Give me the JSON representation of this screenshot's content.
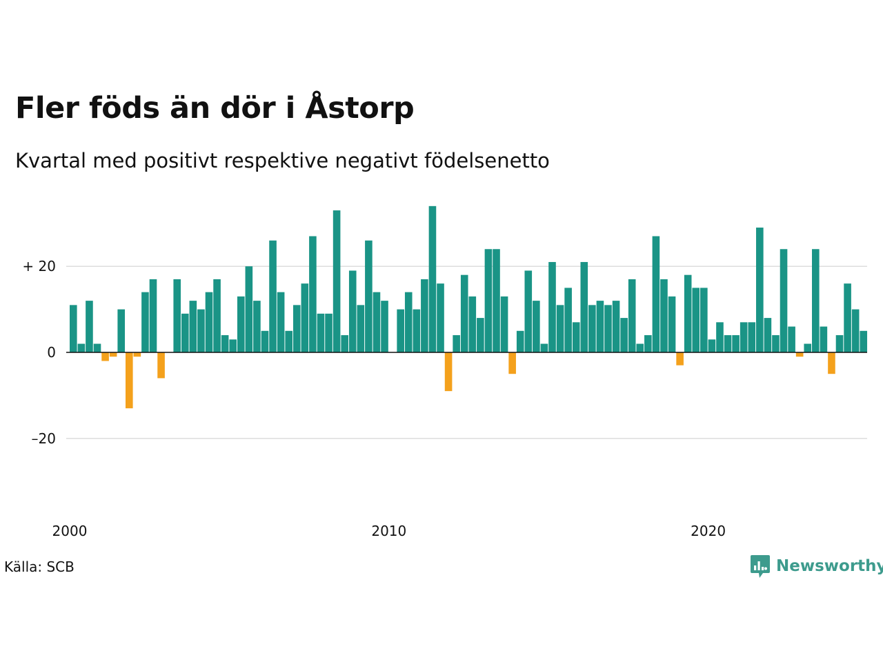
{
  "header": {
    "title": "Fler föds än dör i Åstorp",
    "subtitle": "Kvartal med positivt respektive negativt födelsenetto"
  },
  "footer": {
    "source": "Källa: SCB",
    "brand": "Newsworthy"
  },
  "colors": {
    "positive": "#1a9486",
    "negative": "#f4a11c",
    "brand": "#3d9b8d",
    "grid": "#dddddd"
  },
  "chart_data": {
    "type": "bar",
    "title": "Fler föds än dör i Åstorp",
    "subtitle": "Kvartal med positivt respektive negativt födelsenetto",
    "xlabel": "",
    "ylabel": "",
    "x_start": 2000,
    "periods_per_year": 4,
    "x_ticks": [
      "2000",
      "2010",
      "2020"
    ],
    "y_ticks": [
      {
        "value": 20,
        "label": "+ 20"
      },
      {
        "value": 0,
        "label": "0"
      },
      {
        "value": -20,
        "label": "–20"
      }
    ],
    "ylim": [
      -37,
      38
    ],
    "grid": true,
    "values": [
      11,
      2,
      12,
      2,
      -2,
      -1,
      10,
      -13,
      -1,
      14,
      17,
      -6,
      0,
      17,
      9,
      12,
      10,
      14,
      17,
      4,
      3,
      13,
      20,
      12,
      5,
      26,
      14,
      5,
      11,
      16,
      27,
      9,
      9,
      33,
      4,
      19,
      11,
      26,
      14,
      12,
      0,
      10,
      14,
      10,
      17,
      34,
      16,
      -9,
      4,
      18,
      13,
      8,
      24,
      24,
      13,
      -5,
      5,
      19,
      12,
      2,
      21,
      11,
      15,
      7,
      21,
      11,
      12,
      11,
      12,
      8,
      17,
      2,
      4,
      27,
      17,
      13,
      -3,
      18,
      15,
      15,
      3,
      7,
      4,
      4,
      7,
      7,
      29,
      8,
      4,
      24,
      6,
      -1,
      2,
      24,
      6,
      -5,
      4,
      16,
      10,
      5
    ]
  }
}
